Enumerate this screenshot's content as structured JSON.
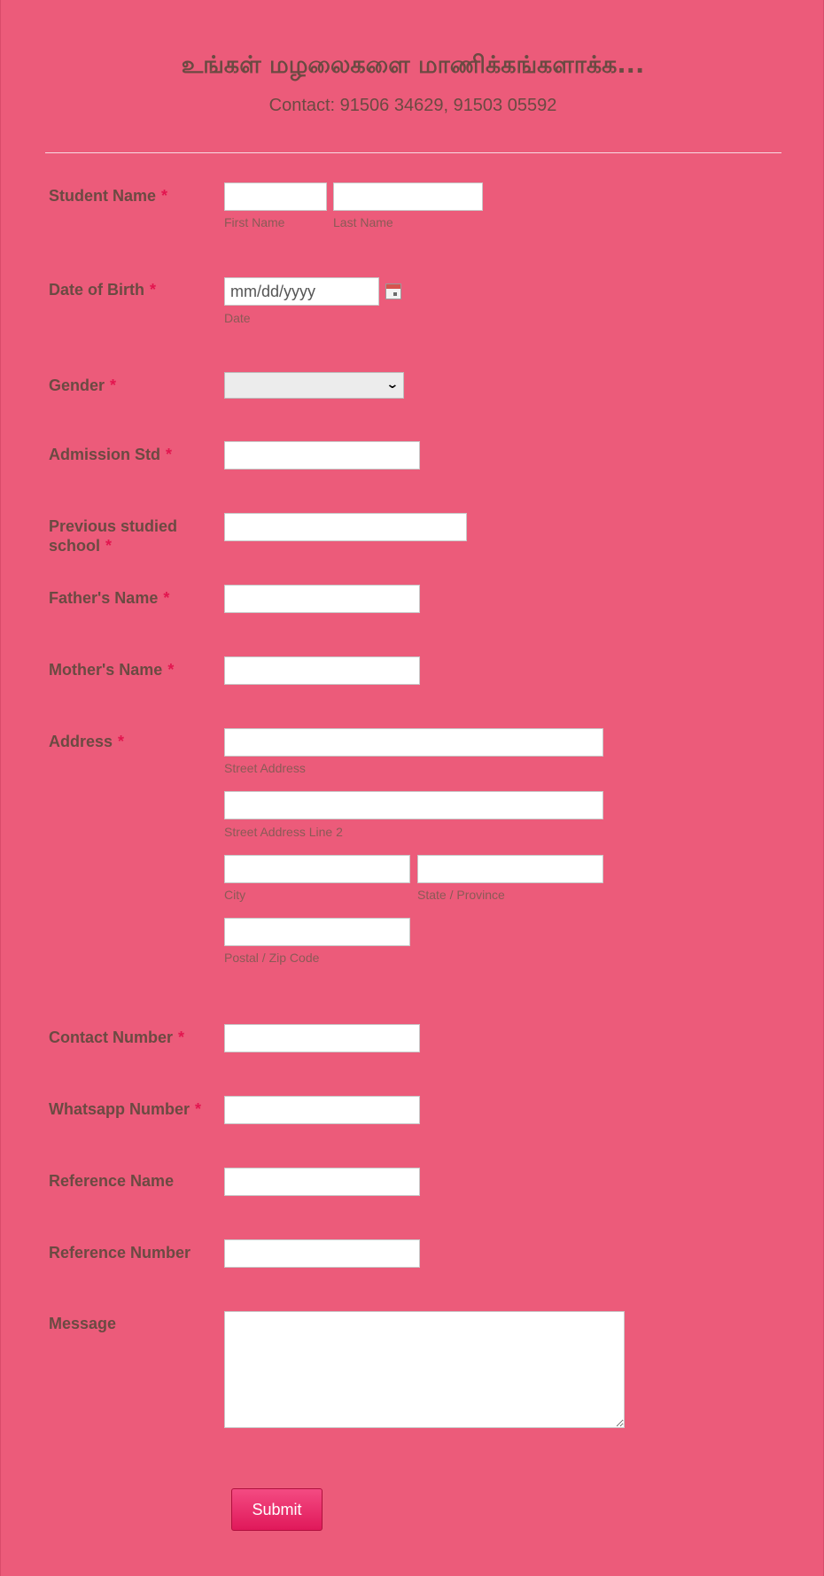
{
  "header": {
    "title": "உங்கள் மழலைகளை மாணிக்கங்களாக்க...",
    "contact": "Contact: 91506 34629, 91503 05592"
  },
  "required_marker": "*",
  "fields": {
    "student_name": {
      "label": "Student Name",
      "first_sublabel": "First Name",
      "last_sublabel": "Last Name"
    },
    "dob": {
      "label": "Date of Birth",
      "placeholder": "mm/dd/yyyy",
      "sublabel": "Date"
    },
    "gender": {
      "label": "Gender",
      "value": ""
    },
    "admission_std": {
      "label": "Admission Std"
    },
    "previous_school": {
      "label": "Previous studied school"
    },
    "father_name": {
      "label": "Father's Name"
    },
    "mother_name": {
      "label": "Mother's Name"
    },
    "address": {
      "label": "Address",
      "street_sublabel": "Street Address",
      "street2_sublabel": "Street Address Line 2",
      "city_sublabel": "City",
      "state_sublabel": "State / Province",
      "zip_sublabel": "Postal / Zip Code"
    },
    "contact_number": {
      "label": "Contact Number"
    },
    "whatsapp_number": {
      "label": "Whatsapp Number"
    },
    "reference_name": {
      "label": "Reference Name"
    },
    "reference_number": {
      "label": "Reference Number"
    },
    "message": {
      "label": "Message"
    }
  },
  "submit_label": "Submit",
  "icons": {
    "calendar": "calendar-icon",
    "dropdown": "chevron-down-icon"
  },
  "colors": {
    "background": "#ec5b7a",
    "label_text": "#6b4a42",
    "required": "#e3154f",
    "button": "#e0185a"
  }
}
